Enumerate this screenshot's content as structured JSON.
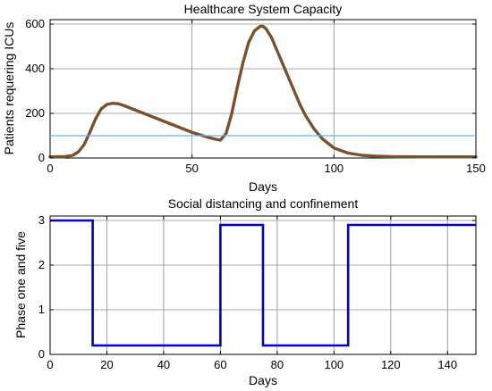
{
  "chart_data": [
    {
      "type": "line",
      "title": "Healthcare System Capacity",
      "xlabel": "Days",
      "ylabel": "Patients requering ICUs",
      "xlim": [
        0,
        150
      ],
      "ylim": [
        0,
        620
      ],
      "xticks": [
        0,
        50,
        100,
        150
      ],
      "yticks": [
        0,
        200,
        400,
        600
      ],
      "grid": true,
      "series": [
        {
          "kind": "curve",
          "color": "#c62828",
          "edge_color": "#2e7d32",
          "x": [
            0,
            5,
            8,
            10,
            12,
            14,
            16,
            18,
            20,
            22,
            24,
            26,
            28,
            30,
            35,
            40,
            45,
            50,
            55,
            58,
            60,
            62,
            64,
            66,
            68,
            70,
            72,
            74,
            75,
            76,
            78,
            80,
            82,
            85,
            88,
            90,
            93,
            96,
            100,
            105,
            110,
            115,
            120,
            130,
            140,
            150
          ],
          "y": [
            5,
            6,
            12,
            28,
            60,
            115,
            175,
            220,
            240,
            245,
            243,
            235,
            225,
            215,
            190,
            165,
            140,
            115,
            95,
            85,
            80,
            110,
            200,
            320,
            430,
            520,
            570,
            590,
            590,
            580,
            540,
            480,
            420,
            330,
            240,
            190,
            130,
            85,
            45,
            22,
            12,
            8,
            6,
            5,
            5,
            5
          ]
        },
        {
          "kind": "capacity-line",
          "color": "#64b5f6",
          "x": [
            0,
            150
          ],
          "y": [
            100,
            100
          ]
        }
      ]
    },
    {
      "type": "line",
      "title": "Social distancing and confinement",
      "xlabel": "Days",
      "ylabel": "Phase one and five",
      "xlim": [
        0,
        150
      ],
      "ylim": [
        0,
        3.1
      ],
      "xticks": [
        0,
        20,
        40,
        60,
        80,
        100,
        120,
        140
      ],
      "yticks": [
        0,
        1,
        2,
        3
      ],
      "grid": true,
      "series": [
        {
          "kind": "step",
          "color": "#0000cc",
          "x": [
            0,
            15,
            15,
            60,
            60,
            75,
            75,
            105,
            105,
            150
          ],
          "y": [
            3,
            3,
            0.2,
            0.2,
            2.9,
            2.9,
            0.2,
            0.2,
            2.9,
            2.9
          ]
        }
      ]
    }
  ]
}
